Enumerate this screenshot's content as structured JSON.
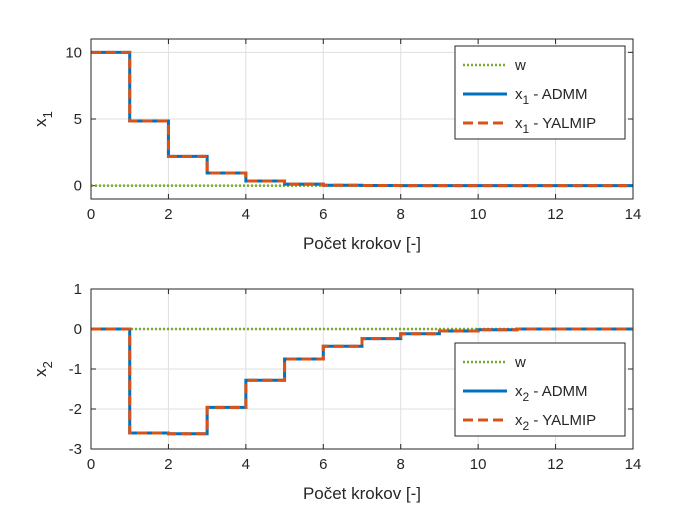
{
  "chart_data": [
    {
      "type": "line",
      "line_shape": "step",
      "xlabel": "Počet krokov [-]",
      "ylabel": "x",
      "ylabel_sub": "1",
      "xlim": [
        0,
        14
      ],
      "ylim": [
        -1,
        11
      ],
      "xticks": [
        "0",
        "2",
        "4",
        "6",
        "8",
        "10",
        "12",
        "14"
      ],
      "yticks": [
        "0",
        "5",
        "10"
      ],
      "grid": true,
      "legend_position": "top-right",
      "series": [
        {
          "name": "w",
          "color": "#77ac30",
          "style": "dotted",
          "x": [
            0,
            14
          ],
          "y": [
            0,
            0
          ]
        },
        {
          "name": "x",
          "name_sub": "1",
          "name_suffix": " - ADMM",
          "color": "#0072bd",
          "style": "solid",
          "x": [
            0,
            1,
            2,
            3,
            4,
            5,
            6,
            7,
            8,
            9,
            10,
            11,
            12,
            13,
            14
          ],
          "y": [
            10,
            4.85,
            2.2,
            0.95,
            0.35,
            0.12,
            0.03,
            0.01,
            0,
            0,
            0,
            0,
            0,
            0,
            0
          ]
        },
        {
          "name": "x",
          "name_sub": "1",
          "name_suffix": " - YALMIP",
          "color": "#d95319",
          "style": "dashed",
          "x": [
            0,
            1,
            2,
            3,
            4,
            5,
            6,
            7,
            8,
            9,
            10,
            11,
            12,
            13,
            14
          ],
          "y": [
            10,
            4.85,
            2.2,
            0.95,
            0.35,
            0.12,
            0.03,
            0.01,
            0,
            0,
            0,
            0,
            0,
            0,
            0
          ]
        }
      ]
    },
    {
      "type": "line",
      "line_shape": "step",
      "xlabel": "Počet krokov [-]",
      "ylabel": "x",
      "ylabel_sub": "2",
      "xlim": [
        0,
        14
      ],
      "ylim": [
        -3,
        1
      ],
      "xticks": [
        "0",
        "2",
        "4",
        "6",
        "8",
        "10",
        "12",
        "14"
      ],
      "yticks": [
        "-3",
        "-2",
        "-1",
        "0",
        "1"
      ],
      "grid": true,
      "legend_position": "bottom-right",
      "series": [
        {
          "name": "w",
          "color": "#77ac30",
          "style": "dotted",
          "x": [
            0,
            14
          ],
          "y": [
            0,
            0
          ]
        },
        {
          "name": "x",
          "name_sub": "2",
          "name_suffix": " - ADMM",
          "color": "#0072bd",
          "style": "solid",
          "x": [
            0,
            1,
            2,
            3,
            4,
            5,
            6,
            7,
            8,
            9,
            10,
            11,
            12,
            13,
            14
          ],
          "y": [
            0,
            -2.6,
            -2.62,
            -1.96,
            -1.28,
            -0.75,
            -0.43,
            -0.24,
            -0.12,
            -0.05,
            -0.02,
            0,
            0,
            0,
            0
          ]
        },
        {
          "name": "x",
          "name_sub": "2",
          "name_suffix": " - YALMIP",
          "color": "#d95319",
          "style": "dashed",
          "x": [
            0,
            1,
            2,
            3,
            4,
            5,
            6,
            7,
            8,
            9,
            10,
            11,
            12,
            13,
            14
          ],
          "y": [
            0,
            -2.6,
            -2.62,
            -1.96,
            -1.28,
            -0.75,
            -0.43,
            -0.24,
            -0.12,
            -0.05,
            -0.02,
            0,
            0,
            0,
            0
          ]
        }
      ]
    }
  ]
}
